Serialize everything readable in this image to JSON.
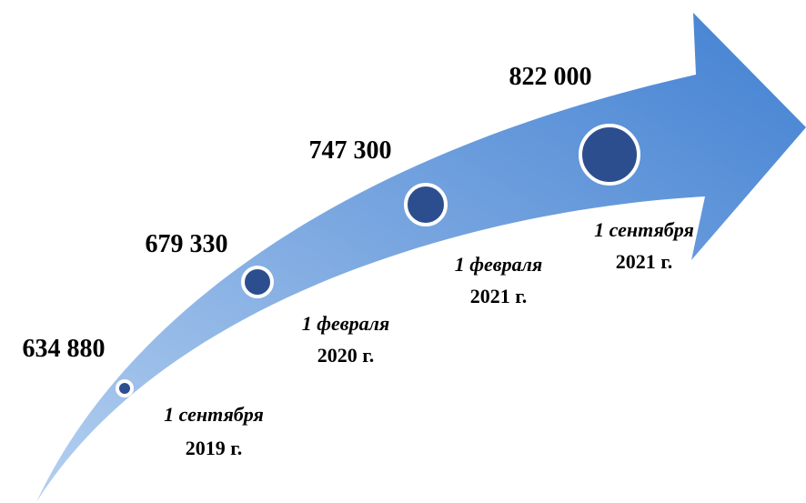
{
  "milestones": [
    {
      "value": "634 880",
      "date_line1": "1  сентября",
      "date_line2": "2019 г."
    },
    {
      "value": "679 330",
      "date_line1": "1 февраля",
      "date_line2": "2020 г."
    },
    {
      "value": "747 300",
      "date_line1": "1 февраля",
      "date_line2": "2021 г."
    },
    {
      "value": "822 000",
      "date_line1": "1 сентября",
      "date_line2": "2021 г."
    }
  ]
}
